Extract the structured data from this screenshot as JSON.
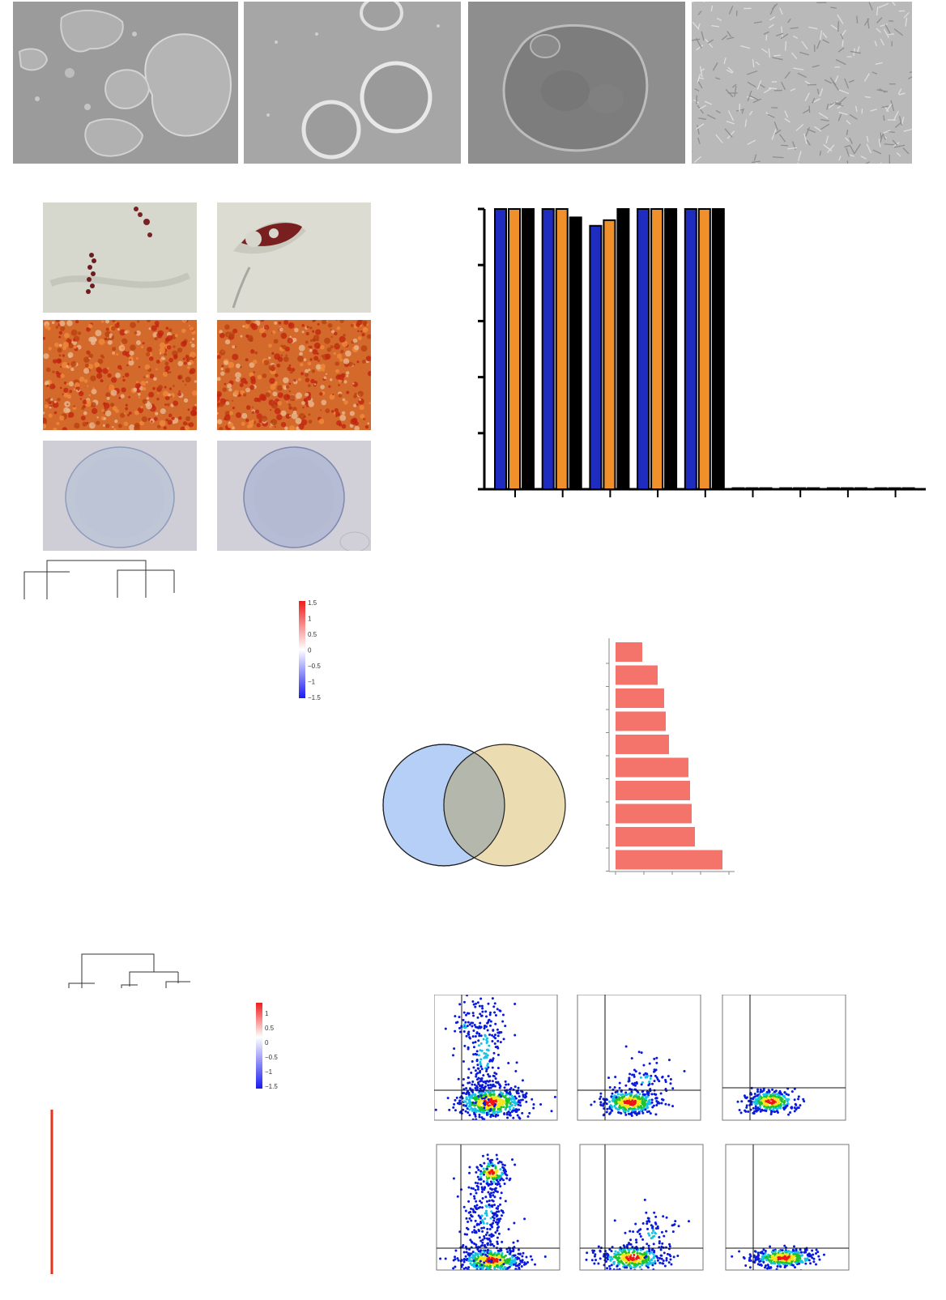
{
  "panels": {
    "micrographs_top": [
      {
        "name": "colonies",
        "bg": "#9c9c9c"
      },
      {
        "name": "spheroids",
        "bg": "#a9a9a9"
      },
      {
        "name": "aggregate",
        "bg": "#8e8e8e"
      },
      {
        "name": "fibroblast-like-cells",
        "bg": "#b8b8b8"
      }
    ],
    "staining_grid": [
      {
        "row": "lipid-droplets",
        "bg": "#d8d8cf",
        "accent": "#7a1f20"
      },
      {
        "row": "mineral-deposits",
        "bg": "#d56a2a",
        "accent": "#b9230f"
      },
      {
        "row": "cartilage-pellet",
        "bg": "#cdccd6",
        "accent": "#8a9bbd"
      }
    ]
  },
  "bar_chart": {
    "type": "bar",
    "series_colors": [
      "#1f2cc0",
      "#f0902a",
      "#000000"
    ],
    "groups": 9,
    "values": [
      [
        100,
        100,
        100
      ],
      [
        100,
        100,
        97
      ],
      [
        94,
        96,
        100
      ],
      [
        100,
        100,
        100
      ],
      [
        100,
        100,
        100
      ],
      [
        0.4,
        0.4,
        0.4
      ],
      [
        0.4,
        0.4,
        0.4
      ],
      [
        0.4,
        0.4,
        0.4
      ],
      [
        0.4,
        0.4,
        0.4
      ]
    ],
    "ylim": [
      0,
      100
    ],
    "yticks": [
      0,
      20,
      40,
      60,
      80,
      100
    ]
  },
  "heatmap1": {
    "legend_ticks": [
      "1.5",
      "1",
      "0.5",
      "0",
      "−0.5",
      "−1",
      "−1.5"
    ],
    "low_color": "#1a1af0",
    "mid_color": "#ffffff",
    "high_color": "#ee1c1c"
  },
  "heatmap2": {
    "legend_ticks": [
      "1",
      "0.5",
      "0",
      "−0.5",
      "−1",
      "−1.5"
    ],
    "low_color": "#1a1af0",
    "mid_color": "#ffffff",
    "high_color": "#ee1c1c"
  },
  "venn": {
    "left_color": "#b5cff7",
    "right_color": "#ecdcb2",
    "overlap_color": "#b4b8ac"
  },
  "hbar_chart": {
    "type": "bar",
    "orientation": "horizontal",
    "color": "#f4736b",
    "values": [
      33,
      52,
      60,
      62,
      66,
      90,
      92,
      94,
      98,
      132
    ]
  },
  "flow_plots": {
    "count": 6,
    "colors": [
      "#0a1adb",
      "#17c3e6",
      "#1ec22a",
      "#f5e51a",
      "#f01414"
    ]
  }
}
